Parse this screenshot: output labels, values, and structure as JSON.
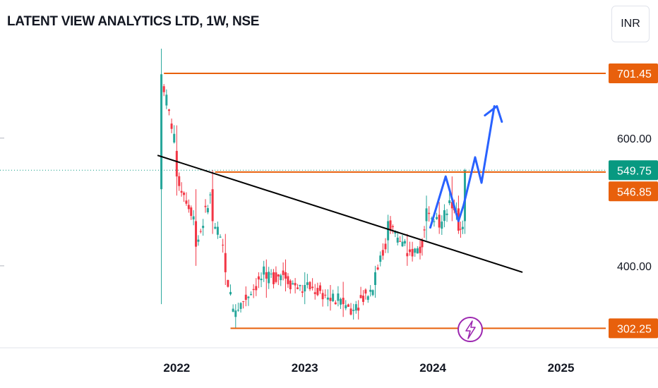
{
  "header": {
    "title": "LATENT VIEW ANALYTICS LTD, 1W, NSE",
    "currency": "INR"
  },
  "colors": {
    "up": "#26a69a",
    "down": "#f23645",
    "level": "#e8600c",
    "trendline": "#000000",
    "projection": "#2962ff",
    "flash": "#9c27b0",
    "current_price": "#089981"
  },
  "chart_data": {
    "type": "candlestick",
    "title": "LATENT VIEW ANALYTICS LTD, 1W, NSE",
    "currency": "INR",
    "x_ticks": [
      {
        "label": "2022",
        "value": 2022.0
      },
      {
        "label": "2023",
        "value": 2023.0
      },
      {
        "label": "2024",
        "value": 2024.0
      },
      {
        "label": "2025",
        "value": 2025.0
      }
    ],
    "y_ticks": [
      {
        "label": "400.00",
        "value": 400
      },
      {
        "label": "600.00",
        "value": 600
      }
    ],
    "ylim": [
      275,
      750
    ],
    "xlim": [
      2020.62,
      2025.35
    ],
    "grid": false,
    "price_badges": [
      {
        "label": "701.45",
        "value": 701.45,
        "kind": "level"
      },
      {
        "label": "549.75",
        "value": 549.75,
        "kind": "current"
      },
      {
        "label": "546.85",
        "value": 546.85,
        "kind": "level"
      },
      {
        "label": "302.25",
        "value": 302.25,
        "kind": "level"
      }
    ],
    "horizontal_levels": [
      {
        "value": 701.45,
        "x_start": 2021.9
      },
      {
        "value": 546.85,
        "x_start": 2022.3
      },
      {
        "value": 302.25,
        "x_start": 2022.42
      }
    ],
    "trendline": {
      "x": [
        2021.85,
        2024.7
      ],
      "y": [
        573,
        390
      ]
    },
    "projection": {
      "x": [
        2023.98,
        2024.1,
        2024.2,
        2024.24,
        2024.33,
        2024.38,
        2024.48
      ],
      "y": [
        460,
        540,
        470,
        495,
        570,
        530,
        650
      ]
    },
    "projection_arrowhead": {
      "x": 2024.5,
      "y": 650
    },
    "anchor_points": [
      {
        "date": 2021.88,
        "open": 520,
        "high": 740,
        "low": 340,
        "close": 700
      },
      {
        "date": 2022.0,
        "open": 580,
        "high": 620,
        "low": 510,
        "close": 540
      },
      {
        "date": 2022.15,
        "open": 470,
        "high": 520,
        "low": 400,
        "close": 430
      },
      {
        "date": 2022.28,
        "open": 520,
        "high": 550,
        "low": 450,
        "close": 470
      },
      {
        "date": 2022.38,
        "open": 420,
        "high": 450,
        "low": 370,
        "close": 390
      },
      {
        "date": 2022.46,
        "open": 320,
        "high": 340,
        "low": 302,
        "close": 330
      },
      {
        "date": 2022.7,
        "open": 390,
        "high": 410,
        "low": 350,
        "close": 380
      },
      {
        "date": 2022.85,
        "open": 390,
        "high": 410,
        "low": 360,
        "close": 380
      },
      {
        "date": 2023.0,
        "open": 360,
        "high": 390,
        "low": 340,
        "close": 370
      },
      {
        "date": 2023.2,
        "open": 350,
        "high": 370,
        "low": 330,
        "close": 345
      },
      {
        "date": 2023.3,
        "open": 350,
        "high": 375,
        "low": 320,
        "close": 340
      },
      {
        "date": 2023.4,
        "open": 330,
        "high": 345,
        "low": 325,
        "close": 340
      },
      {
        "date": 2023.55,
        "open": 370,
        "high": 400,
        "low": 350,
        "close": 390
      },
      {
        "date": 2023.65,
        "open": 440,
        "high": 480,
        "low": 420,
        "close": 470
      },
      {
        "date": 2023.8,
        "open": 420,
        "high": 450,
        "low": 400,
        "close": 415
      },
      {
        "date": 2023.9,
        "open": 430,
        "high": 440,
        "low": 410,
        "close": 420
      },
      {
        "date": 2023.95,
        "open": 470,
        "high": 510,
        "low": 440,
        "close": 490
      },
      {
        "date": 2024.05,
        "open": 480,
        "high": 500,
        "low": 450,
        "close": 460
      },
      {
        "date": 2024.15,
        "open": 500,
        "high": 540,
        "low": 470,
        "close": 490
      },
      {
        "date": 2024.2,
        "open": 490,
        "high": 510,
        "low": 450,
        "close": 455
      },
      {
        "date": 2024.25,
        "open": 470,
        "high": 552,
        "low": 450,
        "close": 549.75
      }
    ]
  }
}
